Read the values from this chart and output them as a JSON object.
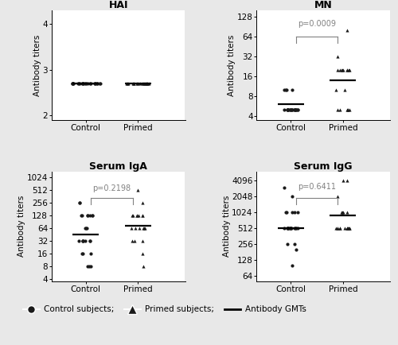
{
  "HAI": {
    "title": "HAI",
    "ylabel": "Antibody titers",
    "yticks": [
      2,
      3,
      4
    ],
    "ylim": [
      1.9,
      4.3
    ],
    "control_dots": [
      2.699,
      2.699,
      2.699,
      2.699,
      2.699,
      2.699,
      2.699,
      2.699,
      2.699,
      2.699,
      2.699,
      2.699,
      2.699,
      2.699,
      2.699,
      2.699,
      2.699,
      2.699,
      2.699,
      2.699,
      2.699,
      2.699,
      2.699,
      2.699
    ],
    "primed_dots": [
      2.699,
      2.699,
      2.699,
      2.699,
      2.699,
      2.699,
      2.699,
      2.699,
      2.699,
      2.699,
      2.699,
      2.699,
      2.699,
      2.699,
      2.699,
      2.699,
      2.699,
      2.699,
      2.699
    ],
    "control_gmt": 2.699,
    "primed_gmt": 2.699,
    "pvalue": null,
    "log_scale": false
  },
  "MN": {
    "title": "MN",
    "ylabel": "Antibody titers",
    "yticks": [
      4,
      8,
      16,
      32,
      64,
      128
    ],
    "ylim": [
      3.5,
      160
    ],
    "control_dots": [
      5,
      5,
      5,
      5,
      5,
      5,
      5,
      5,
      5,
      5,
      5,
      5,
      5,
      5,
      5,
      5,
      5,
      5,
      5,
      5,
      10,
      10,
      10,
      10
    ],
    "primed_dots": [
      5,
      5,
      5,
      5,
      5,
      5,
      10,
      10,
      20,
      20,
      20,
      20,
      20,
      20,
      20,
      20,
      20,
      32,
      80
    ],
    "control_gmt": 6.0,
    "primed_gmt": 14.0,
    "pvalue": "p=0.0009",
    "log_scale": true
  },
  "IgA": {
    "title": "Serum IgA",
    "ylabel": "Antibody titers",
    "yticks": [
      4,
      8,
      16,
      32,
      64,
      128,
      256,
      512,
      1024
    ],
    "ylim": [
      3.5,
      1400
    ],
    "control_dots": [
      8,
      8,
      8,
      16,
      16,
      16,
      32,
      32,
      32,
      32,
      32,
      32,
      32,
      64,
      64,
      64,
      128,
      128,
      128,
      128,
      128,
      128,
      128,
      256,
      256
    ],
    "primed_dots": [
      8,
      16,
      32,
      32,
      32,
      64,
      64,
      64,
      64,
      64,
      64,
      128,
      128,
      128,
      128,
      128,
      128,
      128,
      256,
      512
    ],
    "control_gmt": 45.0,
    "primed_gmt": 72.0,
    "pvalue": "p=0.2198",
    "log_scale": true
  },
  "IgG": {
    "title": "Serum IgG",
    "ylabel": "Antibody titers",
    "yticks": [
      64,
      128,
      256,
      512,
      1024,
      2048,
      4096
    ],
    "ylim": [
      50,
      6000
    ],
    "control_dots": [
      100,
      200,
      256,
      256,
      512,
      512,
      512,
      512,
      512,
      512,
      512,
      512,
      512,
      512,
      512,
      512,
      512,
      1024,
      1024,
      1024,
      1024,
      1024,
      2048,
      3000
    ],
    "primed_dots": [
      512,
      512,
      512,
      512,
      512,
      512,
      512,
      512,
      512,
      512,
      512,
      512,
      512,
      1024,
      1024,
      1024,
      1024,
      2048,
      4096,
      4096
    ],
    "control_gmt": 512.0,
    "primed_gmt": 900.0,
    "pvalue": "p=0.6411",
    "log_scale": true
  },
  "bg_color": "#e8e8e8",
  "panel_color": "#ffffff",
  "dot_color": "#1a1a1a",
  "gmt_line_color": "#000000",
  "fontsize_title": 9,
  "fontsize_label": 7.5,
  "fontsize_tick": 7.5,
  "fontsize_pval": 7.0
}
